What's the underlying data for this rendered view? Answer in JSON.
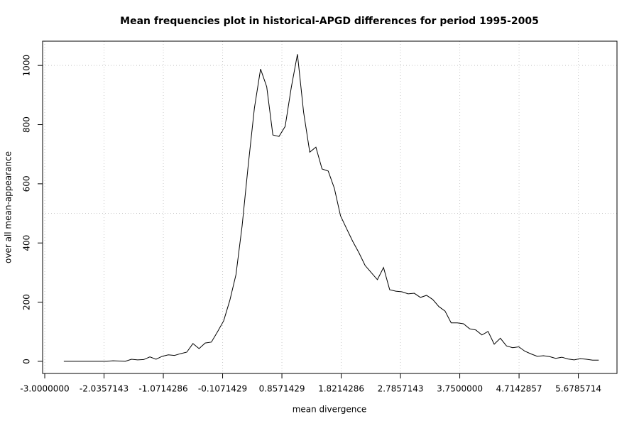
{
  "chart_data": {
    "type": "line",
    "title": "Mean frequencies plot in historical-APGD differences for period 1995-2005",
    "x_label": "mean divergence",
    "y_label": "over all mean-appearance",
    "color": "#000000",
    "x": [
      -2.69,
      -2.59,
      -2.49,
      -2.39,
      -2.29,
      -2.19,
      -2.09,
      -1.99,
      -1.89,
      -1.79,
      -1.69,
      -1.59,
      -1.49,
      -1.39,
      -1.29,
      -1.19,
      -1.09,
      -0.99,
      -0.89,
      -0.79,
      -0.69,
      -0.59,
      -0.49,
      -0.39,
      -0.29,
      -0.19,
      -0.09,
      0.01,
      0.11,
      0.21,
      0.31,
      0.41,
      0.51,
      0.61,
      0.71,
      0.81,
      0.91,
      1.01,
      1.11,
      1.21,
      1.31,
      1.41,
      1.51,
      1.61,
      1.71,
      1.81,
      1.91,
      2.01,
      2.11,
      2.21,
      2.31,
      2.41,
      2.51,
      2.61,
      2.71,
      2.81,
      2.91,
      3.01,
      3.11,
      3.21,
      3.31,
      3.41,
      3.51,
      3.61,
      3.71,
      3.81,
      3.91,
      4.01,
      4.11,
      4.21,
      4.31,
      4.41,
      4.51,
      4.61,
      4.71,
      4.81,
      4.91,
      5.01,
      5.11,
      5.21,
      5.31,
      5.41,
      5.51,
      5.61,
      5.71,
      5.81,
      5.91,
      6.01
    ],
    "values": [
      0,
      0,
      0,
      0,
      0,
      0,
      0,
      0,
      2,
      1,
      0,
      7,
      5,
      6,
      15,
      7,
      17,
      22,
      20,
      26,
      31,
      60,
      43,
      62,
      65,
      100,
      137,
      206,
      293,
      458,
      664,
      856,
      988,
      928,
      765,
      760,
      794,
      926,
      1038,
      842,
      707,
      724,
      650,
      643,
      585,
      492,
      448,
      405,
      367,
      324,
      300,
      276,
      317,
      242,
      237,
      235,
      228,
      230,
      216,
      223,
      209,
      185,
      170,
      130,
      130,
      127,
      110,
      106,
      89,
      101,
      58,
      78,
      52,
      46,
      49,
      34,
      25,
      17,
      19,
      16,
      10,
      14,
      8,
      5,
      9,
      7,
      4,
      4
    ],
    "xlim": [
      -3.035,
      6.307
    ],
    "xticks": [
      {
        "value": -3,
        "label": "-3.0000000"
      },
      -2.0357143,
      -1.0714286,
      -0.1071429,
      0.8571429,
      1.8214286,
      2.7857143,
      {
        "value": 3.75,
        "label": "3.7500000"
      },
      4.7142857,
      5.6785714
    ],
    "ylim": [
      -41,
      1082
    ],
    "yticks": [
      0,
      200,
      400,
      600,
      800,
      1000
    ],
    "y_grid_lines": [
      500,
      1000
    ],
    "grid": true
  }
}
